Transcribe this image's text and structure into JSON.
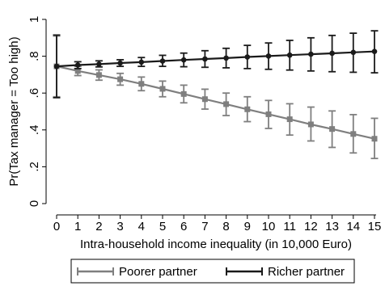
{
  "chart_data": {
    "type": "line",
    "title": "",
    "xlabel": "Intra-household income inequality (in 10,000 Euro)",
    "ylabel": "Pr(Tax manager = Too high)",
    "xlim": [
      0,
      15
    ],
    "ylim": [
      0,
      1
    ],
    "x_ticks": [
      0,
      1,
      2,
      3,
      4,
      5,
      6,
      7,
      8,
      9,
      10,
      11,
      12,
      13,
      14,
      15
    ],
    "x_tick_labels": [
      "0",
      "1",
      "2",
      "3",
      "4",
      "5",
      "6",
      "7",
      "8",
      "9",
      "10",
      "11",
      "12",
      "13",
      "14",
      "15"
    ],
    "y_ticks": [
      0,
      0.2,
      0.4,
      0.6,
      0.8,
      1
    ],
    "y_tick_labels": [
      "0",
      ".2",
      ".4",
      ".6",
      ".8",
      "1"
    ],
    "grid": false,
    "legend_position": "bottom",
    "x": [
      0,
      1,
      2,
      3,
      4,
      5,
      6,
      7,
      8,
      9,
      10,
      11,
      12,
      13,
      14,
      15
    ],
    "series": [
      {
        "name": "Poorer partner",
        "color": "#7f7f7f",
        "marker": "square",
        "values": [
          0.745,
          0.72,
          0.698,
          0.675,
          0.65,
          0.623,
          0.595,
          0.567,
          0.54,
          0.512,
          0.485,
          0.458,
          0.43,
          0.405,
          0.378,
          0.352
        ],
        "ci_low": [
          0.58,
          0.695,
          0.67,
          0.643,
          0.613,
          0.58,
          0.547,
          0.513,
          0.478,
          0.445,
          0.408,
          0.372,
          0.34,
          0.305,
          0.275,
          0.245
        ],
        "ci_high": [
          0.91,
          0.745,
          0.726,
          0.707,
          0.687,
          0.665,
          0.643,
          0.621,
          0.6,
          0.58,
          0.56,
          0.542,
          0.524,
          0.503,
          0.483,
          0.463
        ]
      },
      {
        "name": "Richer partner",
        "color": "#1a1a1a",
        "marker": "circle",
        "values": [
          0.745,
          0.752,
          0.757,
          0.763,
          0.768,
          0.774,
          0.78,
          0.785,
          0.79,
          0.796,
          0.801,
          0.806,
          0.811,
          0.816,
          0.821,
          0.826
        ],
        "ci_low": [
          0.575,
          0.733,
          0.742,
          0.745,
          0.745,
          0.745,
          0.743,
          0.74,
          0.737,
          0.733,
          0.729,
          0.725,
          0.72,
          0.716,
          0.713,
          0.71
        ],
        "ci_high": [
          0.915,
          0.77,
          0.775,
          0.781,
          0.793,
          0.805,
          0.817,
          0.83,
          0.843,
          0.859,
          0.872,
          0.886,
          0.9,
          0.913,
          0.925,
          0.938
        ]
      }
    ]
  }
}
